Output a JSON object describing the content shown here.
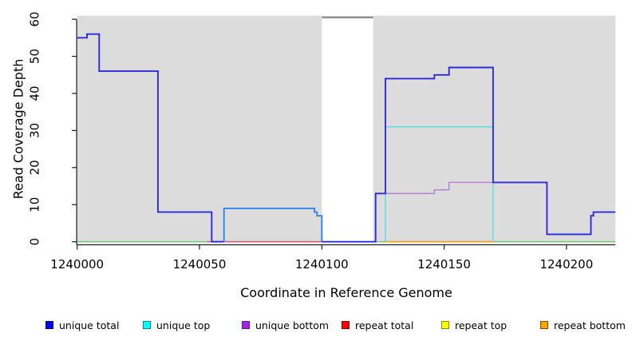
{
  "chart_data": {
    "type": "step-line",
    "title": "",
    "x_label": "Coordinate in Reference Genome",
    "y_label": "Read Coverage Depth",
    "x_range": [
      1240000,
      1240220
    ],
    "y_range": [
      0,
      61
    ],
    "x_ticks": [
      "1240000",
      "1240050",
      "1240100",
      "1240150",
      "1240200"
    ],
    "x_tick_values": [
      1240000,
      1240050,
      1240100,
      1240150,
      1240200
    ],
    "y_ticks": [
      "0",
      "10",
      "20",
      "30",
      "40",
      "50",
      "60"
    ],
    "y_tick_values": [
      0,
      10,
      20,
      30,
      40,
      50,
      60
    ],
    "grid": "off",
    "plot_bg_color": "#DCDCDC",
    "gap_region": {
      "x_start": 1240100,
      "x_end": 1240121,
      "fill": "#FFFFFF",
      "top_line_value": 61,
      "top_line_color": "#8A8A8A"
    },
    "series": [
      {
        "name": "repeat top",
        "legend_color": "#FFFF00",
        "line_width": 1.6,
        "paths": [
          {
            "color": "#79C879",
            "points": [
              [
                1240000,
                0
              ],
              [
                1240100,
                0
              ]
            ]
          },
          {
            "color": "#79C879",
            "points": [
              [
                1240121,
                0
              ],
              [
                1240220,
                0
              ]
            ]
          }
        ]
      },
      {
        "name": "repeat total",
        "legend_color": "#FF0000",
        "line_width": 1.6,
        "paths": [
          {
            "color": "#D85C74",
            "points": [
              [
                1240053,
                0
              ],
              [
                1240100,
                0
              ]
            ]
          }
        ]
      },
      {
        "name": "unique bottom",
        "legend_color": "#A425E8",
        "line_width": 1.3,
        "paths": [
          {
            "color": "#B478D8",
            "points": [
              [
                1240122,
                0
              ],
              [
                1240122,
                13
              ],
              [
                1240146,
                13
              ],
              [
                1240146,
                14
              ],
              [
                1240152,
                14
              ],
              [
                1240152,
                16
              ],
              [
                1240192,
                16
              ],
              [
                1240192,
                2
              ],
              [
                1240210,
                2
              ],
              [
                1240210,
                7
              ],
              [
                1240211,
                7
              ],
              [
                1240211,
                8
              ],
              [
                1240220,
                8
              ]
            ]
          }
        ]
      },
      {
        "name": "unique top",
        "legend_color": "#00FFFF",
        "line_width": 1.3,
        "paths": [
          {
            "color": "#50DCDC",
            "points": [
              [
                1240060,
                0
              ],
              [
                1240060,
                9
              ],
              [
                1240097,
                9
              ],
              [
                1240097,
                8
              ],
              [
                1240098,
                8
              ],
              [
                1240098,
                7
              ],
              [
                1240100,
                7
              ],
              [
                1240100,
                0
              ]
            ]
          },
          {
            "color": "#50DCDC",
            "points": [
              [
                1240126,
                0
              ],
              [
                1240126,
                31
              ],
              [
                1240170,
                31
              ],
              [
                1240170,
                0
              ]
            ]
          }
        ]
      },
      {
        "name": "repeat bottom",
        "legend_color": "#FFA500",
        "line_width": 1.6,
        "paths": [
          {
            "color": "#FF9E1B",
            "points": [
              [
                1240126,
                0
              ],
              [
                1240170,
                0
              ]
            ]
          }
        ]
      },
      {
        "name": "unique total",
        "legend_color": "#0000F0",
        "line_width": 1.9,
        "paths": [
          {
            "color": "#2B2BD9",
            "points": [
              [
                1240000,
                55
              ],
              [
                1240004,
                55
              ],
              [
                1240004,
                56
              ],
              [
                1240009,
                56
              ],
              [
                1240009,
                46
              ],
              [
                1240033,
                46
              ],
              [
                1240033,
                8
              ],
              [
                1240055,
                8
              ],
              [
                1240055,
                0
              ],
              [
                1240060,
                0
              ]
            ]
          },
          {
            "color": "#2E86E8",
            "points": [
              [
                1240060,
                0
              ],
              [
                1240060,
                9
              ],
              [
                1240097,
                9
              ],
              [
                1240097,
                8
              ],
              [
                1240098,
                8
              ],
              [
                1240098,
                7
              ],
              [
                1240100,
                7
              ],
              [
                1240100,
                0
              ]
            ]
          },
          {
            "color": "#2B2BD9",
            "points": [
              [
                1240100,
                0
              ],
              [
                1240122,
                0
              ],
              [
                1240122,
                13
              ],
              [
                1240126,
                13
              ],
              [
                1240126,
                44
              ],
              [
                1240146,
                44
              ],
              [
                1240146,
                45
              ],
              [
                1240152,
                45
              ],
              [
                1240152,
                47
              ],
              [
                1240170,
                47
              ],
              [
                1240170,
                16
              ],
              [
                1240192,
                16
              ],
              [
                1240192,
                2
              ],
              [
                1240210,
                2
              ],
              [
                1240210,
                7
              ],
              [
                1240211,
                7
              ],
              [
                1240211,
                8
              ],
              [
                1240220,
                8
              ]
            ]
          }
        ]
      }
    ]
  },
  "axes": {
    "x_title": "Coordinate in Reference Genome",
    "y_title": "Read Coverage Depth"
  },
  "legend": {
    "items": [
      {
        "label": "unique total",
        "fill": "#0000F0",
        "border": "#00008B"
      },
      {
        "label": "unique top",
        "fill": "#00FFFF",
        "border": "#008B8B"
      },
      {
        "label": "unique bottom",
        "fill": "#A425E8",
        "border": "#5E1A8E"
      },
      {
        "label": "repeat total",
        "fill": "#FF0000",
        "border": "#8B0000"
      },
      {
        "label": "repeat top",
        "fill": "#FFFF00",
        "border": "#8B8B00"
      },
      {
        "label": "repeat bottom",
        "fill": "#FFA500",
        "border": "#7A4A00"
      }
    ]
  }
}
